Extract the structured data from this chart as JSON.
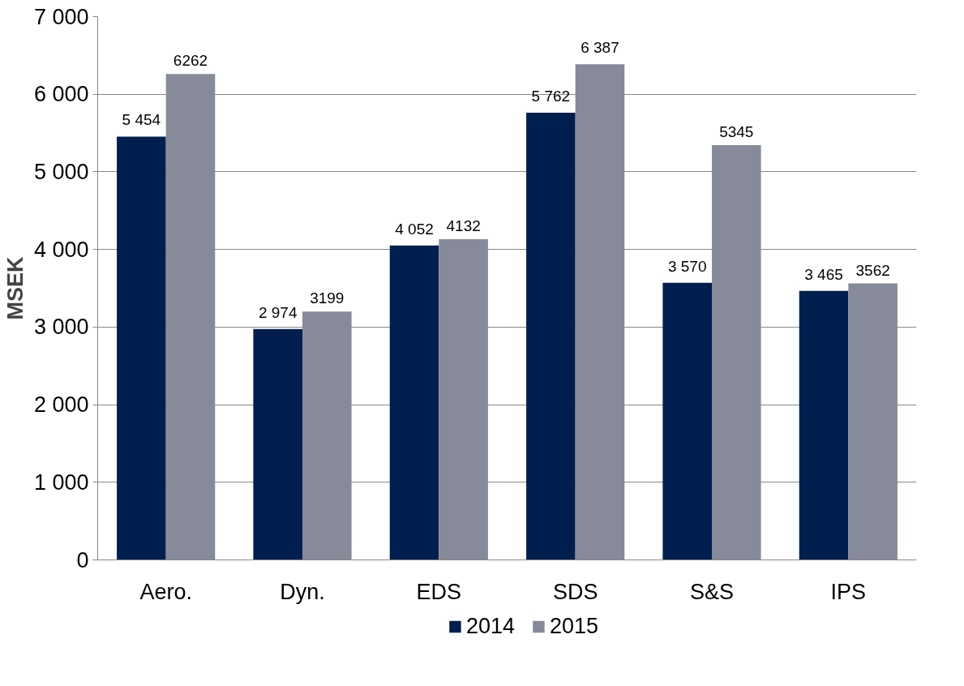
{
  "chart_data": {
    "type": "bar",
    "ylabel": "MSEK",
    "categories": [
      "Aero.",
      "Dyn.",
      "EDS",
      "SDS",
      "S&S",
      "IPS"
    ],
    "series": [
      {
        "name": "2014",
        "color": "#001f4e",
        "values": [
          5454,
          2974,
          4052,
          5762,
          3570,
          3465
        ],
        "value_labels": [
          "5 454",
          "2 974",
          "4 052",
          "5 762",
          "3 570",
          "3 465"
        ]
      },
      {
        "name": "2015",
        "color": "#868a99",
        "values": [
          6262,
          3199,
          4132,
          6387,
          5345,
          3562
        ],
        "value_labels": [
          "6262",
          "3199",
          "4132",
          "6 387",
          "5345",
          "3562"
        ]
      }
    ],
    "ylim": [
      0,
      7000
    ],
    "yticks": [
      {
        "value": 0,
        "label": "0"
      },
      {
        "value": 1000,
        "label": "1 000"
      },
      {
        "value": 2000,
        "label": "2 000"
      },
      {
        "value": 3000,
        "label": "3 000"
      },
      {
        "value": 4000,
        "label": "4 000"
      },
      {
        "value": 5000,
        "label": "5 000"
      },
      {
        "value": 6000,
        "label": "6 000"
      },
      {
        "value": 7000,
        "label": "7 000"
      }
    ],
    "grid": "y",
    "legend": "bottom"
  }
}
